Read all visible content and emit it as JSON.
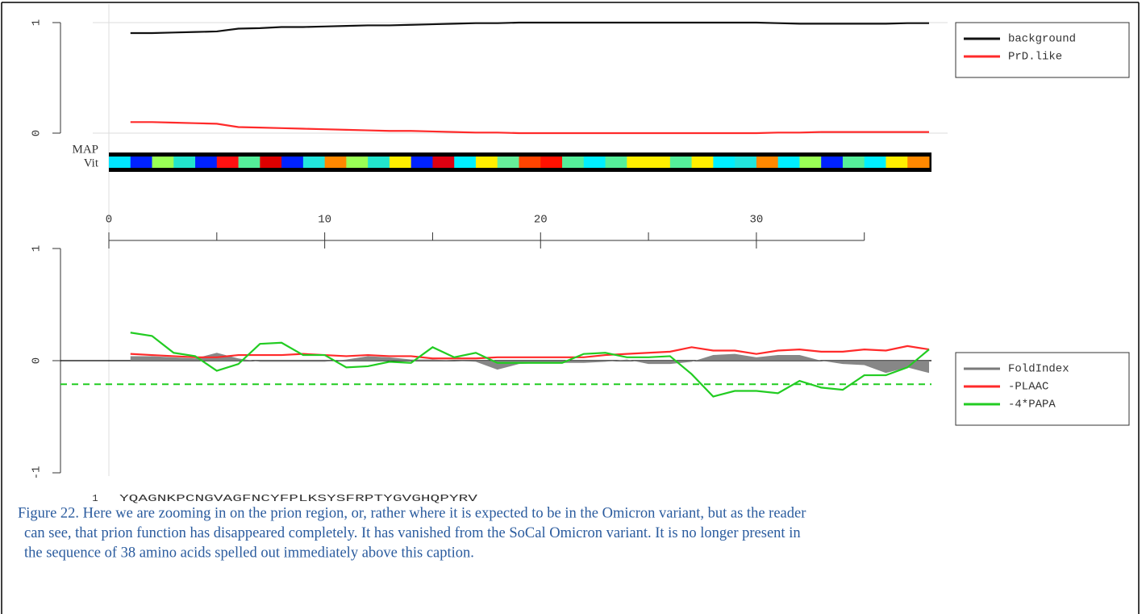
{
  "chart_data": [
    {
      "type": "line",
      "map_labels": [
        "MAP",
        "Vit"
      ],
      "map_colors": [
        "#00e5ff",
        "#0022ff",
        "#99ff55",
        "#22e5cc",
        "#0022ff",
        "#ff1111",
        "#55ee99",
        "#dd0000",
        "#0022ff",
        "#22e5dd",
        "#ff8800",
        "#99ff55",
        "#22e5cc",
        "#ffee00",
        "#0022ff",
        "#dd0011",
        "#00eeff",
        "#ffee00",
        "#66ee99",
        "#ff4400",
        "#ff1100",
        "#55ee99",
        "#00eeff",
        "#55ee99",
        "#ffee00",
        "#ffee00",
        "#55ee99",
        "#ffee00",
        "#00eeff",
        "#22e5dd",
        "#ff8800",
        "#00eeff",
        "#99ff55",
        "#0022ff",
        "#55ee99",
        "#00eeff",
        "#ffee00",
        "#ff8800"
      ],
      "x": [
        1,
        2,
        3,
        4,
        5,
        6,
        7,
        8,
        9,
        10,
        11,
        12,
        13,
        14,
        15,
        16,
        17,
        18,
        19,
        20,
        21,
        22,
        23,
        24,
        25,
        26,
        27,
        28,
        29,
        30,
        31,
        32,
        33,
        34,
        35,
        36,
        37,
        38
      ],
      "series": [
        {
          "name": "background",
          "color": "#111111",
          "values": [
            0.905,
            0.905,
            0.91,
            0.915,
            0.92,
            0.945,
            0.95,
            0.96,
            0.96,
            0.965,
            0.97,
            0.975,
            0.975,
            0.98,
            0.985,
            0.99,
            0.995,
            0.995,
            1.0,
            1.0,
            1.0,
            1.0,
            1.0,
            1.0,
            1.0,
            1.0,
            1.0,
            1.0,
            1.0,
            1.0,
            0.995,
            0.99,
            0.99,
            0.99,
            0.99,
            0.99,
            0.995,
            0.995
          ]
        },
        {
          "name": "PrD.like",
          "color": "#ff2a2a",
          "values": [
            0.1,
            0.1,
            0.095,
            0.09,
            0.085,
            0.055,
            0.05,
            0.045,
            0.04,
            0.035,
            0.03,
            0.025,
            0.02,
            0.02,
            0.015,
            0.01,
            0.005,
            0.005,
            0.0,
            0.0,
            0.0,
            0.0,
            0.0,
            0.0,
            0.0,
            0.0,
            0.0,
            0.0,
            0.0,
            0.0,
            0.005,
            0.005,
            0.01,
            0.01,
            0.01,
            0.01,
            0.01,
            0.01
          ]
        }
      ],
      "xlim": [
        0,
        38
      ],
      "xticks": [
        0,
        10,
        20,
        30
      ],
      "xminorticks": [
        5,
        15,
        25,
        35
      ],
      "ylim": [
        0,
        1
      ],
      "yticks": [
        0,
        1
      ],
      "grid": true,
      "legend": "upper right"
    },
    {
      "type": "line",
      "x": [
        1,
        2,
        3,
        4,
        5,
        6,
        7,
        8,
        9,
        10,
        11,
        12,
        13,
        14,
        15,
        16,
        17,
        18,
        19,
        20,
        21,
        22,
        23,
        24,
        25,
        26,
        27,
        28,
        29,
        30,
        31,
        32,
        33,
        34,
        35,
        36,
        37,
        38
      ],
      "series": [
        {
          "name": "FoldIndex",
          "color": "#7a7a7a",
          "fill": "area",
          "values": [
            0.04,
            0.04,
            0.03,
            0.02,
            0.07,
            0.02,
            -0.01,
            -0.01,
            -0.01,
            -0.01,
            0.01,
            0.04,
            0.03,
            0.01,
            0.01,
            0.0,
            -0.01,
            -0.08,
            -0.03,
            -0.02,
            -0.02,
            -0.02,
            -0.01,
            0.01,
            -0.03,
            -0.03,
            -0.01,
            0.05,
            0.06,
            0.03,
            0.05,
            0.05,
            0.0,
            -0.03,
            -0.04,
            -0.11,
            -0.06,
            -0.11
          ]
        },
        {
          "name": "-PLAAC",
          "color": "#ff2a2a",
          "values": [
            0.06,
            0.05,
            0.04,
            0.03,
            0.03,
            0.05,
            0.05,
            0.05,
            0.06,
            0.05,
            0.04,
            0.05,
            0.04,
            0.04,
            0.02,
            0.02,
            0.02,
            0.03,
            0.03,
            0.03,
            0.03,
            0.03,
            0.05,
            0.06,
            0.07,
            0.08,
            0.12,
            0.09,
            0.09,
            0.06,
            0.09,
            0.1,
            0.08,
            0.08,
            0.1,
            0.09,
            0.13,
            0.1
          ]
        },
        {
          "name": "-4*PAPA",
          "color": "#22cc22",
          "values": [
            0.25,
            0.22,
            0.07,
            0.04,
            -0.09,
            -0.03,
            0.15,
            0.16,
            0.05,
            0.05,
            -0.06,
            -0.05,
            -0.01,
            -0.02,
            0.12,
            0.03,
            0.07,
            -0.02,
            -0.02,
            -0.02,
            -0.02,
            0.06,
            0.07,
            0.03,
            0.03,
            0.04,
            -0.12,
            -0.32,
            -0.27,
            -0.27,
            -0.29,
            -0.18,
            -0.24,
            -0.26,
            -0.13,
            -0.13,
            -0.06,
            0.1
          ]
        }
      ],
      "threshold": -0.21,
      "threshold_color": "#22cc22",
      "xlim": [
        0,
        38
      ],
      "ylim": [
        -1,
        1
      ],
      "yticks": [
        -1,
        0,
        1
      ],
      "zero_line": true,
      "legend": "right",
      "sequence_start": 1,
      "sequence": "YQAGNKPCNGVAGFNCYFPLKSYSFRPTYGVGHQPYRV"
    }
  ],
  "caption_lines": [
    "Figure 22. Here we are zooming in on the prion region, or, rather where it is expected to be in the Omicron variant, but as the reader",
    "can see, that prion function has disappeared completely. It has vanished from the SoCal Omicron variant. It is no longer present in",
    "the sequence of 38 amino acids spelled out immediately above this caption."
  ]
}
